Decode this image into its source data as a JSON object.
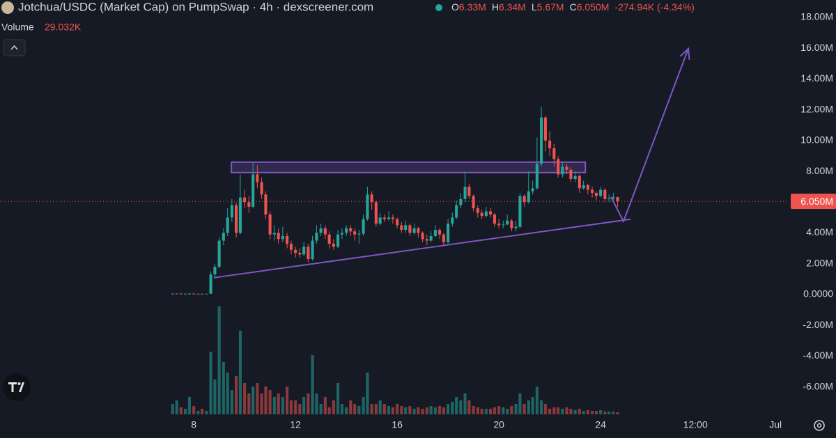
{
  "chart_data": {
    "type": "candlestick",
    "title": "Jotchua/USDC (Market Cap) on PumpSwap · 4h · dexscreener.com",
    "ohlc_header": [
      {
        "key": "O",
        "value": "6.33M"
      },
      {
        "key": "H",
        "value": "6.34M"
      },
      {
        "key": "L",
        "value": "5.67M"
      },
      {
        "key": "C",
        "value": "6.050M"
      }
    ],
    "change": "-274.94K (-4.34%)",
    "volume_header": {
      "label": "Volume",
      "value": "29.032K"
    },
    "up_color": "#26a69a",
    "down_color": "#ef5350",
    "x": [
      7.17,
      7.33,
      7.5,
      7.67,
      7.83,
      8,
      8.17,
      8.33,
      8.5,
      8.67,
      8.83,
      9,
      9.17,
      9.33,
      9.5,
      9.67,
      9.83,
      10,
      10.17,
      10.33,
      10.5,
      10.67,
      10.83,
      11,
      11.17,
      11.33,
      11.5,
      11.67,
      11.83,
      12,
      12.17,
      12.33,
      12.5,
      12.67,
      12.83,
      13,
      13.17,
      13.33,
      13.5,
      13.67,
      13.83,
      14,
      14.17,
      14.33,
      14.5,
      14.67,
      14.83,
      15,
      15.17,
      15.33,
      15.5,
      15.67,
      15.83,
      16,
      16.17,
      16.33,
      16.5,
      16.67,
      16.83,
      17,
      17.17,
      17.33,
      17.5,
      17.67,
      17.83,
      18,
      18.17,
      18.33,
      18.5,
      18.67,
      18.83,
      19,
      19.17,
      19.33,
      19.5,
      19.67,
      19.83,
      20,
      20.17,
      20.33,
      20.5,
      20.67,
      20.83,
      21,
      21.17,
      21.33,
      21.5,
      21.67,
      21.83,
      22,
      22.17,
      22.33,
      22.5,
      22.67,
      22.83,
      23,
      23.17,
      23.33,
      23.5,
      23.67,
      23.83,
      24,
      24.17,
      24.33,
      24.5,
      24.67
    ],
    "ohlc": [
      [
        0.05,
        0.08,
        0.03,
        0.05
      ],
      [
        0.05,
        0.07,
        0.03,
        0.06
      ],
      [
        0.06,
        0.08,
        0.04,
        0.05
      ],
      [
        0.05,
        0.07,
        0.03,
        0.05
      ],
      [
        0.05,
        0.09,
        0.03,
        0.06
      ],
      [
        0.06,
        0.08,
        0.04,
        0.05
      ],
      [
        0.05,
        0.07,
        0.04,
        0.05
      ],
      [
        0.05,
        0.07,
        0.03,
        0.04
      ],
      [
        0.04,
        0.06,
        0.03,
        0.05
      ],
      [
        0.05,
        1.5,
        0.05,
        1.3
      ],
      [
        1.3,
        2.0,
        1.1,
        1.8
      ],
      [
        1.8,
        3.7,
        1.7,
        3.5
      ],
      [
        3.5,
        4.3,
        3.2,
        4.0
      ],
      [
        4.0,
        5.6,
        3.8,
        5.0
      ],
      [
        5.0,
        6.2,
        4.7,
        5.8
      ],
      [
        5.8,
        6.0,
        3.7,
        4.0
      ],
      [
        4.0,
        7.8,
        3.9,
        6.3
      ],
      [
        6.3,
        6.8,
        5.6,
        6.0
      ],
      [
        6.0,
        6.4,
        5.3,
        5.7
      ],
      [
        5.7,
        8.6,
        5.6,
        7.8
      ],
      [
        7.8,
        8.4,
        6.9,
        7.3
      ],
      [
        7.3,
        7.6,
        6.2,
        6.5
      ],
      [
        6.5,
        6.7,
        4.9,
        5.2
      ],
      [
        5.2,
        5.4,
        3.6,
        3.9
      ],
      [
        3.9,
        4.5,
        3.5,
        4.0
      ],
      [
        4.0,
        4.3,
        3.3,
        3.6
      ],
      [
        3.6,
        4.4,
        3.4,
        3.8
      ],
      [
        3.8,
        4.0,
        3.0,
        3.3
      ],
      [
        3.3,
        3.5,
        2.6,
        2.9
      ],
      [
        2.9,
        3.1,
        2.4,
        2.7
      ],
      [
        2.7,
        3.0,
        2.4,
        2.6
      ],
      [
        2.6,
        3.4,
        2.5,
        3.1
      ],
      [
        3.1,
        3.3,
        2.1,
        2.3
      ],
      [
        2.3,
        3.8,
        2.2,
        3.5
      ],
      [
        3.5,
        4.5,
        3.3,
        4.0
      ],
      [
        4.0,
        4.6,
        3.8,
        4.3
      ],
      [
        4.3,
        4.5,
        3.6,
        3.9
      ],
      [
        3.9,
        4.1,
        3.0,
        3.3
      ],
      [
        3.3,
        3.6,
        2.9,
        3.1
      ],
      [
        3.1,
        4.2,
        3.0,
        3.9
      ],
      [
        3.9,
        4.3,
        3.6,
        4.0
      ],
      [
        4.0,
        4.5,
        3.8,
        4.3
      ],
      [
        4.3,
        4.5,
        3.8,
        4.1
      ],
      [
        4.1,
        4.3,
        3.5,
        3.9
      ],
      [
        3.9,
        4.2,
        3.3,
        3.95
      ],
      [
        3.95,
        5.2,
        3.8,
        4.9
      ],
      [
        4.9,
        7.0,
        4.8,
        6.5
      ],
      [
        6.5,
        6.7,
        5.5,
        6.0
      ],
      [
        6.0,
        6.1,
        4.4,
        4.6
      ],
      [
        4.6,
        5.3,
        4.5,
        5.0
      ],
      [
        5.0,
        5.2,
        4.7,
        4.9
      ],
      [
        4.9,
        5.4,
        4.8,
        5.0
      ],
      [
        5.0,
        5.2,
        4.6,
        4.9
      ],
      [
        4.9,
        5.0,
        4.3,
        4.5
      ],
      [
        4.5,
        4.7,
        4.0,
        4.2
      ],
      [
        4.2,
        4.8,
        4.0,
        4.5
      ],
      [
        4.5,
        4.6,
        3.8,
        4.0
      ],
      [
        4.0,
        4.6,
        3.9,
        4.3
      ],
      [
        4.3,
        4.4,
        3.7,
        4.0
      ],
      [
        4.0,
        4.1,
        3.4,
        3.6
      ],
      [
        3.6,
        3.9,
        3.2,
        3.5
      ],
      [
        3.5,
        4.1,
        3.4,
        3.8
      ],
      [
        3.8,
        4.5,
        3.7,
        4.2
      ],
      [
        4.2,
        4.3,
        3.6,
        3.9
      ],
      [
        3.9,
        4.0,
        3.2,
        3.4
      ],
      [
        3.4,
        4.9,
        3.3,
        4.6
      ],
      [
        4.6,
        5.3,
        4.4,
        5.0
      ],
      [
        5.0,
        6.1,
        4.9,
        5.8
      ],
      [
        5.8,
        6.6,
        5.6,
        6.2
      ],
      [
        6.2,
        8.0,
        6.0,
        7.0
      ],
      [
        7.0,
        7.2,
        6.2,
        6.4
      ],
      [
        6.4,
        6.5,
        5.4,
        5.6
      ],
      [
        5.6,
        5.8,
        5.0,
        5.3
      ],
      [
        5.3,
        5.5,
        4.9,
        5.1
      ],
      [
        5.1,
        5.7,
        5.0,
        5.4
      ],
      [
        5.4,
        5.6,
        5.0,
        5.2
      ],
      [
        5.2,
        5.3,
        4.4,
        4.6
      ],
      [
        4.6,
        4.9,
        4.3,
        4.5
      ],
      [
        4.5,
        4.8,
        4.3,
        4.55
      ],
      [
        4.55,
        5.2,
        4.5,
        4.8
      ],
      [
        4.8,
        4.9,
        4.1,
        4.3
      ],
      [
        4.3,
        4.8,
        4.1,
        4.4
      ],
      [
        4.4,
        6.6,
        4.3,
        6.4
      ],
      [
        6.4,
        6.5,
        5.7,
        6.0
      ],
      [
        6.0,
        8.0,
        5.9,
        6.7
      ],
      [
        6.7,
        7.4,
        6.5,
        6.9
      ],
      [
        6.9,
        10.2,
        6.8,
        8.5
      ],
      [
        8.5,
        12.2,
        8.3,
        11.5
      ],
      [
        11.5,
        11.6,
        9.3,
        10.0
      ],
      [
        10.0,
        10.6,
        9.0,
        9.5
      ],
      [
        9.5,
        9.8,
        8.3,
        8.8
      ],
      [
        8.8,
        9.0,
        7.6,
        7.8
      ],
      [
        7.8,
        8.6,
        7.6,
        8.3
      ],
      [
        8.3,
        8.5,
        7.8,
        8.1
      ],
      [
        8.1,
        8.3,
        7.3,
        7.5
      ],
      [
        7.5,
        8.0,
        7.3,
        7.7
      ],
      [
        7.7,
        7.8,
        6.6,
        6.9
      ],
      [
        6.9,
        7.4,
        6.8,
        7.1
      ],
      [
        7.1,
        7.2,
        6.5,
        6.8
      ],
      [
        6.8,
        7.0,
        6.3,
        6.6
      ],
      [
        6.6,
        6.7,
        6.1,
        6.4
      ],
      [
        6.4,
        7.0,
        6.3,
        6.8
      ],
      [
        6.8,
        6.9,
        6.0,
        6.2
      ],
      [
        6.2,
        6.5,
        6.0,
        6.25
      ],
      [
        6.25,
        6.6,
        6.1,
        6.33
      ],
      [
        6.33,
        6.34,
        5.67,
        6.05
      ]
    ],
    "volume": [
      150,
      200,
      100,
      80,
      250,
      120,
      50,
      80,
      50,
      900,
      500,
      1550,
      750,
      600,
      350,
      550,
      1200,
      450,
      300,
      400,
      450,
      300,
      400,
      350,
      250,
      300,
      250,
      400,
      200,
      200,
      150,
      250,
      300,
      850,
      300,
      150,
      250,
      100,
      200,
      450,
      150,
      100,
      200,
      150,
      120,
      250,
      600,
      150,
      150,
      200,
      150,
      120,
      100,
      150,
      120,
      100,
      120,
      80,
      100,
      80,
      100,
      120,
      100,
      120,
      100,
      150,
      180,
      250,
      200,
      300,
      200,
      120,
      100,
      80,
      80,
      80,
      100,
      120,
      100,
      80,
      120,
      150,
      300,
      150,
      200,
      250,
      400,
      200,
      150,
      80,
      100,
      100,
      80,
      100,
      80,
      60,
      80,
      50,
      60,
      50,
      50,
      60,
      40,
      40,
      40,
      29.032
    ],
    "volume_ylim": [
      0,
      1600
    ],
    "last_price": {
      "value": 6.05,
      "label": "6.050M"
    },
    "xlim": [
      0.38,
      31.34
    ],
    "xticks": [
      8,
      12,
      16,
      20,
      24,
      {
        "value": 27.73,
        "label": "12:00"
      },
      {
        "value": 30.88,
        "label": "Jul"
      }
    ],
    "ylim": [
      -7.92,
      19.13
    ],
    "yticks": [
      {
        "value": 18,
        "label": "18.00M"
      },
      {
        "value": 16,
        "label": "16.00M"
      },
      {
        "value": 14,
        "label": "14.00M"
      },
      {
        "value": 12,
        "label": "12.00M"
      },
      {
        "value": 10,
        "label": "10.00M"
      },
      {
        "value": 8,
        "label": "8.00M"
      },
      {
        "value": 6,
        "label": "6.00M"
      },
      {
        "value": 4,
        "label": "4.00M"
      },
      {
        "value": 2,
        "label": "2.00M"
      },
      {
        "value": 0,
        "label": "0.0000"
      },
      {
        "value": -2,
        "label": "-2.00M"
      },
      {
        "value": -4,
        "label": "-4.00M"
      },
      {
        "value": -6,
        "label": "-6.00M"
      }
    ],
    "grid": false,
    "annotations": {
      "zone": {
        "x": [
          9.48,
          23.4
        ],
        "y": [
          7.92,
          8.6
        ],
        "color": "#7e57c2"
      },
      "trendline": {
        "x": [
          8.79,
          25.18
        ],
        "y": [
          1.09,
          4.89
        ],
        "color": "#7e57c2"
      },
      "arrow": {
        "x": [
          24.41,
          24.9,
          27.45
        ],
        "y": [
          6.33,
          4.75,
          15.97
        ],
        "color": "#7e57c2"
      }
    }
  }
}
